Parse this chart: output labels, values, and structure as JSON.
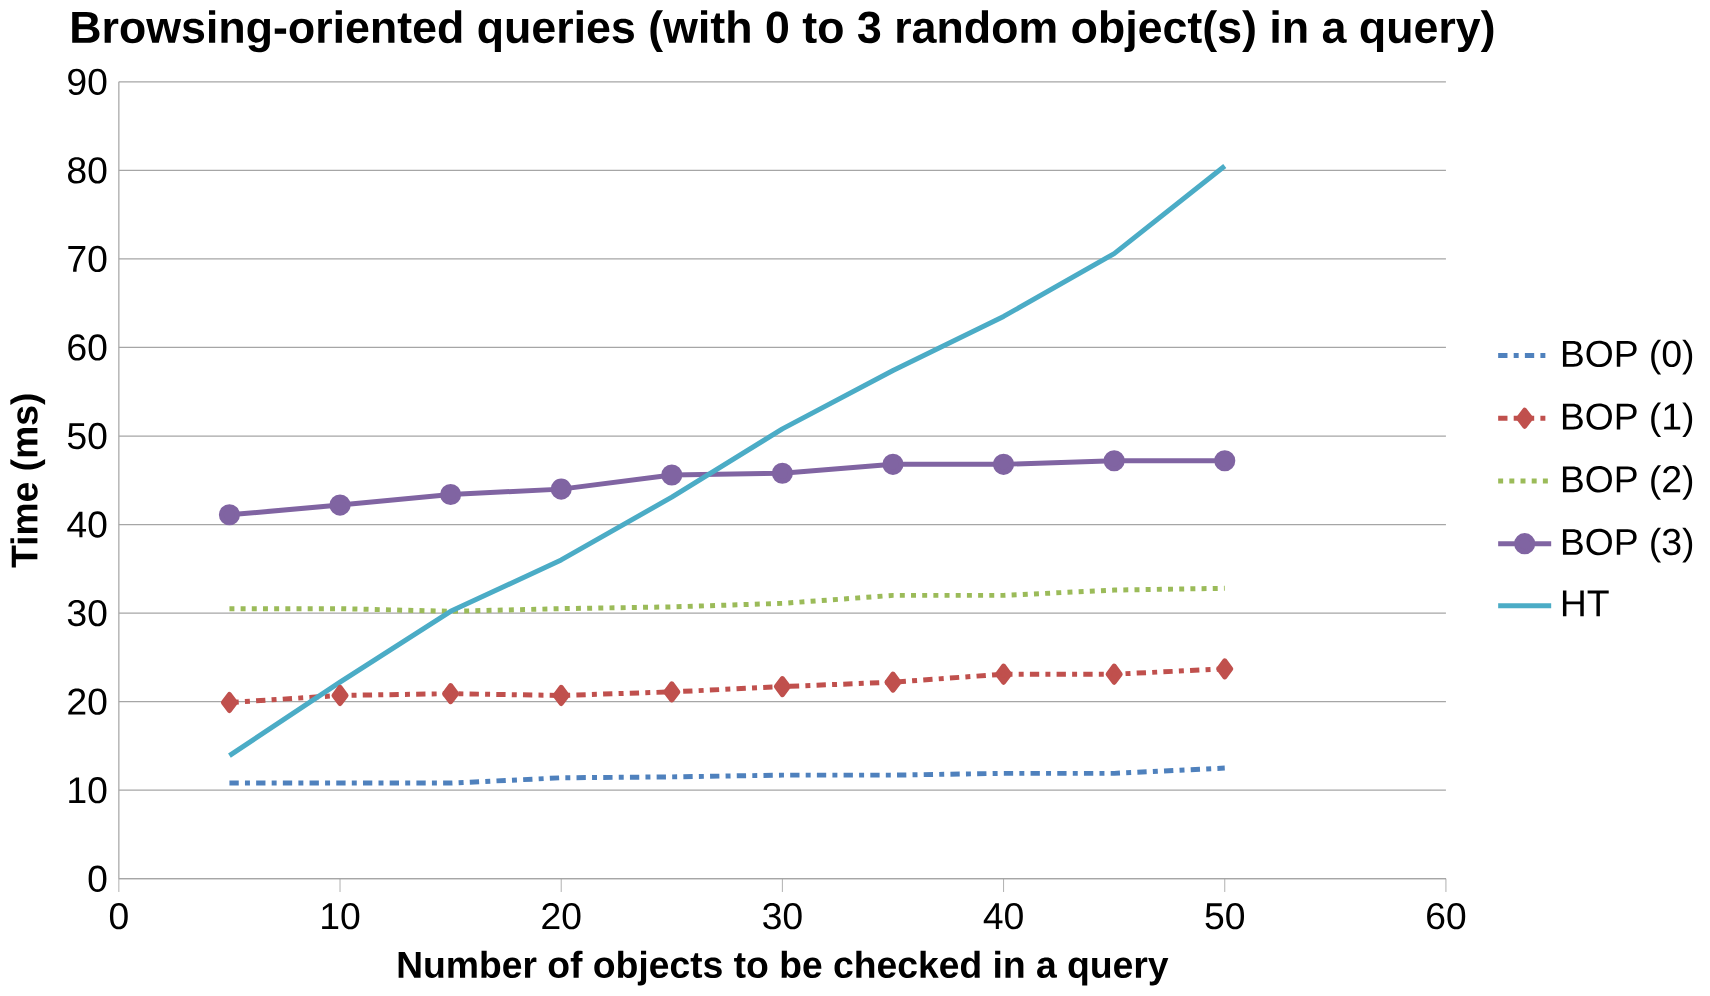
{
  "chart_data": {
    "type": "line",
    "title": "Browsing-oriented queries (with 0 to 3 random object(s) in a query)",
    "xlabel": "Number of objects to be checked in a query",
    "ylabel": "Time (ms)",
    "x": [
      5,
      10,
      15,
      20,
      25,
      30,
      35,
      40,
      45,
      50
    ],
    "xlim": [
      0,
      60
    ],
    "xticks": [
      0,
      10,
      20,
      30,
      40,
      50,
      60
    ],
    "ylim": [
      0,
      90
    ],
    "yticks": [
      0,
      10,
      20,
      30,
      40,
      50,
      60,
      70,
      80,
      90
    ],
    "grid": "y",
    "legend": "right",
    "series": [
      {
        "name": "BOP (0)",
        "color": "#4f81bd",
        "line_style": "dashdot",
        "marker": "none",
        "values": [
          10.8,
          10.8,
          10.8,
          11.4,
          11.5,
          11.7,
          11.7,
          11.9,
          11.9,
          12.5
        ]
      },
      {
        "name": "BOP (1)",
        "color": "#c0504d",
        "line_style": "dashdot",
        "marker": "diamond",
        "values": [
          19.9,
          20.7,
          20.9,
          20.7,
          21.1,
          21.7,
          22.2,
          23.1,
          23.1,
          23.7
        ]
      },
      {
        "name": "BOP (2)",
        "color": "#9bbb59",
        "line_style": "dotted",
        "marker": "none",
        "values": [
          30.5,
          30.5,
          30.2,
          30.5,
          30.7,
          31.1,
          32,
          32,
          32.6,
          32.8
        ]
      },
      {
        "name": "BOP (3)",
        "color": "#8064a2",
        "line_style": "solid",
        "marker": "circle",
        "values": [
          41.1,
          42.2,
          43.4,
          44,
          45.6,
          45.8,
          46.8,
          46.8,
          47.2,
          47.2
        ]
      },
      {
        "name": "HT",
        "color": "#4bacc6",
        "line_style": "solid",
        "marker": "none",
        "values": [
          13.9,
          22.2,
          30.2,
          36,
          43.1,
          50.8,
          57.4,
          63.5,
          70.6,
          80.5
        ]
      }
    ]
  }
}
